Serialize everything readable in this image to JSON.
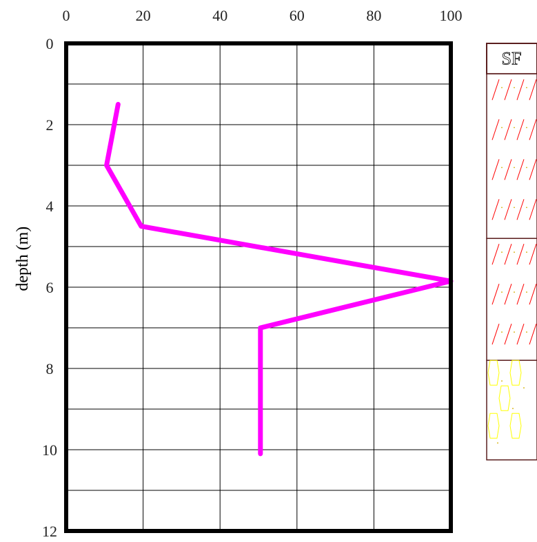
{
  "chart_data": {
    "type": "line",
    "title": "",
    "xlabel": "",
    "ylabel": "depth (m)",
    "x_ticks": [
      "0",
      "20",
      "40",
      "60",
      "80",
      "100"
    ],
    "y_ticks": [
      "0",
      "2",
      "4",
      "6",
      "8",
      "10",
      "12"
    ],
    "xlim": [
      0,
      100
    ],
    "ylim": [
      0,
      12
    ],
    "y_inverted": true,
    "x_axis_position": "top",
    "grid": true,
    "series": [
      {
        "color": "#ff00ff",
        "x": [
          13.5,
          10.5,
          19.5,
          100,
          50.5,
          50.5
        ],
        "y": [
          1.5,
          3.0,
          4.5,
          5.85,
          7.0,
          10.1
        ]
      }
    ]
  },
  "borehole_log": {
    "top_label": "SF",
    "layers": [
      {
        "from": 0,
        "to": 0.75,
        "pattern": "fill",
        "color": "#5a1e1e"
      },
      {
        "from": 0.75,
        "to": 4.8,
        "pattern": "diagonal-hatch",
        "color": "#ff0000"
      },
      {
        "from": 4.8,
        "to": 7.8,
        "pattern": "diagonal-hatch",
        "color": "#ff0000"
      },
      {
        "from": 7.8,
        "to": 10.25,
        "pattern": "gravel",
        "color": "#ffff00"
      }
    ]
  }
}
